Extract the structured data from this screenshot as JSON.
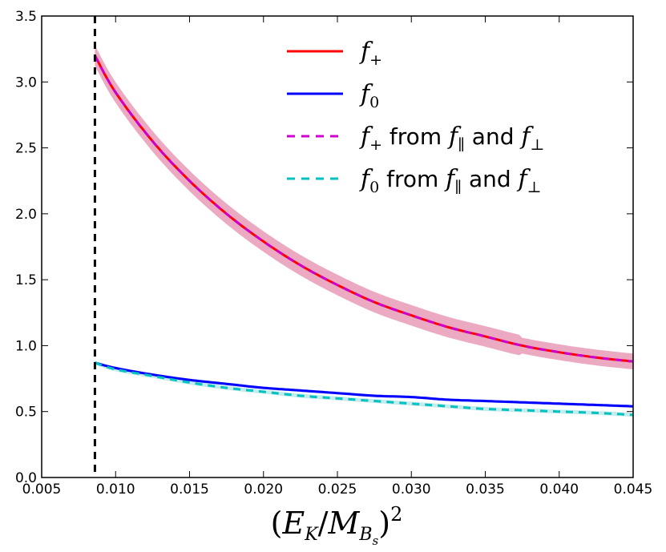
{
  "chart_data": {
    "type": "line",
    "title": "",
    "xlabel": "(E_K/M_Bs)^2",
    "ylabel": "",
    "xlim": [
      0.005,
      0.045
    ],
    "ylim": [
      0.0,
      3.5
    ],
    "x_ticks": [
      "0.005",
      "0.010",
      "0.015",
      "0.020",
      "0.025",
      "0.030",
      "0.035",
      "0.040",
      "0.045"
    ],
    "y_ticks": [
      "0.0",
      "0.5",
      "1.0",
      "1.5",
      "2.0",
      "2.5",
      "3.0",
      "3.5"
    ],
    "grid": false,
    "legend_position": "top-right",
    "vline_x": 0.0086,
    "x": [
      0.0086,
      0.01,
      0.0125,
      0.015,
      0.0175,
      0.02,
      0.0225,
      0.025,
      0.0275,
      0.03,
      0.0325,
      0.035,
      0.0375,
      0.04,
      0.0425,
      0.045
    ],
    "series": [
      {
        "name": "f+",
        "legend": "f_+",
        "color": "#ff0000",
        "style": "solid",
        "band_color": "#e0709a",
        "values": [
          3.2,
          2.92,
          2.55,
          2.25,
          2.0,
          1.79,
          1.61,
          1.46,
          1.33,
          1.23,
          1.14,
          1.07,
          1.0,
          0.95,
          0.91,
          0.88
        ],
        "band_halfwidth": 0.06
      },
      {
        "name": "f0",
        "legend": "f_0",
        "color": "#0000ff",
        "style": "solid",
        "band_color": "#8080ff",
        "values": [
          0.87,
          0.83,
          0.78,
          0.74,
          0.71,
          0.68,
          0.66,
          0.64,
          0.62,
          0.61,
          0.59,
          0.58,
          0.57,
          0.56,
          0.55,
          0.54
        ],
        "band_halfwidth": 0.01
      },
      {
        "name": "f+ from f_par and f_perp",
        "legend": "f_+ from f_∥ and f_⊥",
        "color": "#cc00cc",
        "style": "dashed",
        "values": [
          3.2,
          2.92,
          2.55,
          2.25,
          2.0,
          1.79,
          1.61,
          1.46,
          1.33,
          1.23,
          1.14,
          1.07,
          1.0,
          0.95,
          0.91,
          0.88
        ]
      },
      {
        "name": "f0 from f_par and f_perp",
        "legend": "f_0 from f_∥ and f_⊥",
        "color": "#00c0c0",
        "style": "dashed",
        "band_color": "#9ee0e0",
        "values": [
          0.87,
          0.82,
          0.77,
          0.72,
          0.68,
          0.65,
          0.62,
          0.6,
          0.58,
          0.56,
          0.54,
          0.52,
          0.51,
          0.5,
          0.49,
          0.475
        ],
        "band_halfwidth": 0.015
      }
    ],
    "legend_labels": {
      "from_text": "from",
      "and_text": "and"
    }
  }
}
